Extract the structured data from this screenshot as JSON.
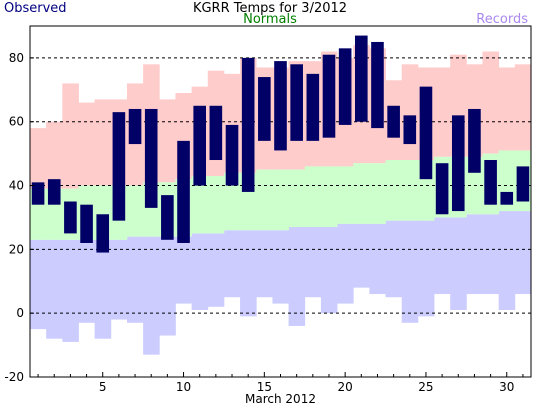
{
  "chart_data": {
    "type": "bar",
    "title": "KGRR Temps for 3/2012",
    "xlabel": "March 2012",
    "ylabel": "",
    "legend": {
      "observed": "Observed",
      "normals": "Normals",
      "records": "Records"
    },
    "colors": {
      "observed": "#000066",
      "observed_label": "#000080",
      "normals": "#ccffcc",
      "normals_label": "#008000",
      "records_high": "#ffcccc",
      "records_low": "#ccccff",
      "records_label": "#aa88ee"
    },
    "xlim": [
      0.5,
      31.5
    ],
    "ylim": [
      -20,
      90
    ],
    "x_ticks": [
      5,
      10,
      15,
      20,
      25,
      30
    ],
    "y_ticks": [
      -20,
      0,
      20,
      40,
      60,
      80
    ],
    "gridlines_y": [
      0,
      20,
      40,
      60,
      80
    ],
    "days": [
      1,
      2,
      3,
      4,
      5,
      6,
      7,
      8,
      9,
      10,
      11,
      12,
      13,
      14,
      15,
      16,
      17,
      18,
      19,
      20,
      21,
      22,
      23,
      24,
      25,
      26,
      27,
      28,
      29,
      30,
      31
    ],
    "observed_high": [
      41,
      42,
      35,
      34,
      31,
      63,
      64,
      64,
      37,
      54,
      65,
      65,
      59,
      80,
      74,
      79,
      78,
      75,
      81,
      83,
      87,
      85,
      65,
      62,
      71,
      47,
      62,
      64,
      48,
      38,
      46
    ],
    "observed_low": [
      34,
      34,
      25,
      22,
      19,
      29,
      53,
      33,
      23,
      22,
      40,
      48,
      40,
      38,
      54,
      51,
      54,
      54,
      55,
      59,
      60,
      58,
      55,
      53,
      42,
      31,
      32,
      44,
      34,
      34,
      35
    ],
    "normal_high": [
      39,
      39,
      39,
      40,
      40,
      40,
      40,
      41,
      41,
      42,
      43,
      43,
      44,
      44,
      45,
      45,
      45,
      46,
      46,
      46,
      47,
      47,
      48,
      48,
      48,
      49,
      49,
      49,
      50,
      51,
      51
    ],
    "normal_low": [
      23,
      23,
      23,
      23,
      23,
      23,
      24,
      24,
      24,
      24,
      25,
      25,
      26,
      26,
      26,
      26,
      27,
      27,
      27,
      28,
      28,
      28,
      29,
      29,
      29,
      30,
      30,
      31,
      31,
      32,
      32
    ],
    "record_high": [
      58,
      60,
      72,
      66,
      67,
      67,
      72,
      78,
      67,
      69,
      71,
      76,
      75,
      80,
      77,
      77,
      79,
      79,
      82,
      80,
      84,
      83,
      73,
      78,
      77,
      77,
      81,
      78,
      82,
      77,
      78
    ],
    "record_low": [
      -5,
      -8,
      -9,
      -3,
      -8,
      -2,
      -3,
      -13,
      -7,
      3,
      1,
      2,
      5,
      -1,
      5,
      3,
      -4,
      5,
      0,
      3,
      8,
      6,
      5,
      -3,
      -1,
      6,
      1,
      6,
      6,
      1,
      6
    ]
  }
}
